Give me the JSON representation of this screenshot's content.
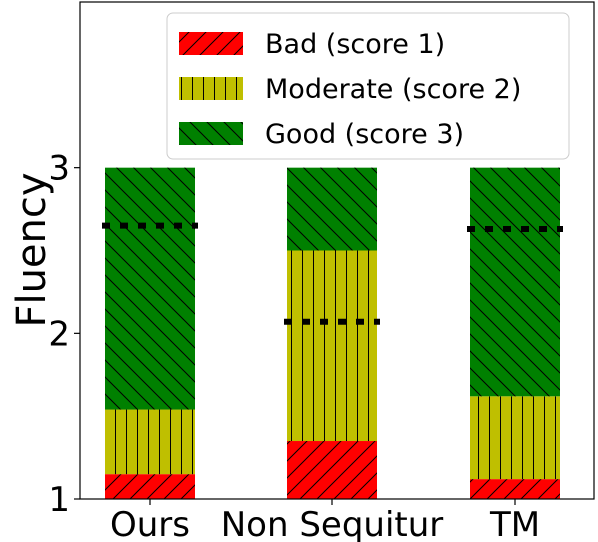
{
  "chart_data": {
    "type": "bar",
    "stacked": true,
    "title": "",
    "xlabel": "",
    "ylabel": "Fluency",
    "ylim": [
      1,
      4
    ],
    "yticks": [
      1,
      2,
      3
    ],
    "categories": [
      "Ours",
      "Non Sequitur",
      "TM"
    ],
    "series": [
      {
        "name": "Bad (score 1)",
        "color": "#ff0000",
        "hatch": "diagonal-forward",
        "bottom": [
          1.0,
          1.0,
          1.0
        ],
        "top": [
          1.15,
          1.35,
          1.12
        ]
      },
      {
        "name": "Moderate (score 2)",
        "color": "#bfbf00",
        "hatch": "vertical",
        "bottom": [
          1.15,
          1.35,
          1.12
        ],
        "top": [
          1.54,
          2.5,
          1.62
        ]
      },
      {
        "name": "Good (score 3)",
        "color": "#008000",
        "hatch": "diagonal-back",
        "bottom": [
          1.54,
          2.5,
          1.62
        ],
        "top": [
          3.0,
          3.0,
          3.0
        ]
      }
    ],
    "mean_scores": [
      2.65,
      2.07,
      2.63
    ],
    "legend_position": "top-right",
    "grid": false
  }
}
